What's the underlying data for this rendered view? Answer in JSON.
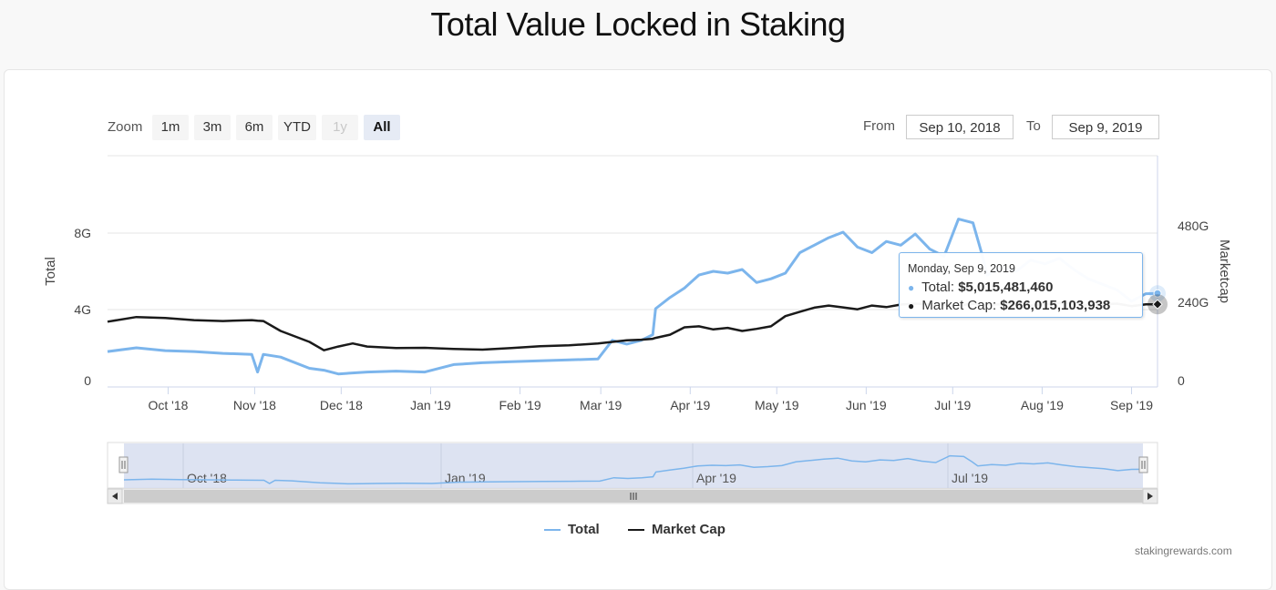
{
  "page": {
    "title": "Total Value Locked in Staking",
    "credits": "stakingrewards.com"
  },
  "range_selector": {
    "zoom_label": "Zoom",
    "buttons": [
      {
        "label": "1m",
        "state": "normal"
      },
      {
        "label": "3m",
        "state": "normal"
      },
      {
        "label": "6m",
        "state": "normal"
      },
      {
        "label": "YTD",
        "state": "normal"
      },
      {
        "label": "1y",
        "state": "disabled"
      },
      {
        "label": "All",
        "state": "active"
      }
    ],
    "from_label": "From",
    "from_value": "Sep 10, 2018",
    "to_label": "To",
    "to_value": "Sep 9, 2019"
  },
  "tooltip": {
    "date": "Monday, Sep 9, 2019",
    "rows": [
      {
        "label": "Total:",
        "value": "$5,015,481,460"
      },
      {
        "label": "Market Cap:",
        "value": "$266,015,103,938"
      }
    ]
  },
  "legend": [
    {
      "label": "Total",
      "color": "#7cb5ec"
    },
    {
      "label": "Market Cap",
      "color": "#1a1a1a"
    }
  ],
  "navigator": {
    "ticks": [
      "Oct '18",
      "Jan '19",
      "Apr '19",
      "Jul '19"
    ]
  },
  "colors": {
    "total": "#7cb5ec",
    "market_cap": "#1a1a1a"
  },
  "chart_data": {
    "type": "line",
    "title": "Total Value Locked in Staking",
    "x": [
      0,
      10,
      20,
      30,
      40,
      50,
      52,
      54,
      60,
      70,
      75,
      80,
      85,
      90,
      100,
      110,
      120,
      130,
      140,
      150,
      160,
      170,
      175,
      180,
      185,
      189,
      190,
      195,
      200,
      205,
      210,
      215,
      220,
      225,
      230,
      235,
      240,
      245,
      250,
      255,
      260,
      265,
      270,
      275,
      280,
      285,
      290,
      295,
      300,
      303,
      305,
      310,
      315,
      320,
      325,
      330,
      335,
      340,
      345,
      350,
      355,
      360,
      364
    ],
    "x_ticks": [
      {
        "label": "Oct '18",
        "day": 21
      },
      {
        "label": "Nov '18",
        "day": 51
      },
      {
        "label": "Dec '18",
        "day": 81
      },
      {
        "label": "Jan '19",
        "day": 112
      },
      {
        "label": "Feb '19",
        "day": 143
      },
      {
        "label": "Mar '19",
        "day": 171
      },
      {
        "label": "Apr '19",
        "day": 202
      },
      {
        "label": "May '19",
        "day": 232
      },
      {
        "label": "Jun '19",
        "day": 263
      },
      {
        "label": "Jul '19",
        "day": 293
      },
      {
        "label": "Aug '19",
        "day": 324
      },
      {
        "label": "Sep '19",
        "day": 355
      }
    ],
    "series": [
      {
        "name": "Total",
        "axis": "left",
        "values": [
          1.9,
          2.1,
          1.95,
          1.9,
          1.8,
          1.75,
          0.8,
          1.75,
          1.6,
          1.0,
          0.9,
          0.7,
          0.75,
          0.8,
          0.85,
          0.8,
          1.2,
          1.3,
          1.35,
          1.4,
          1.45,
          1.5,
          2.5,
          2.3,
          2.5,
          2.8,
          4.2,
          4.8,
          5.3,
          6.0,
          6.2,
          6.1,
          6.3,
          5.6,
          5.8,
          6.1,
          7.2,
          7.6,
          8.0,
          8.3,
          7.5,
          7.2,
          7.8,
          7.6,
          8.2,
          7.4,
          7.0,
          9.0,
          8.8,
          7.2,
          6.0,
          6.4,
          6.2,
          6.8,
          6.6,
          6.9,
          6.3,
          5.8,
          5.5,
          5.2,
          4.6,
          5.0,
          5.015
        ]
      },
      {
        "name": "Market Cap",
        "axis": "right",
        "values": [
          210,
          225,
          222,
          215,
          212,
          215,
          213,
          212,
          180,
          145,
          118,
          130,
          140,
          130,
          125,
          126,
          122,
          120,
          125,
          131,
          134,
          140,
          145,
          150,
          152,
          155,
          158,
          168,
          192,
          195,
          185,
          190,
          180,
          187,
          195,
          228,
          242,
          255,
          262,
          256,
          250,
          262,
          257,
          265,
          268,
          266,
          264,
          262,
          268,
          264,
          265,
          266,
          270,
          262,
          266,
          270,
          268,
          263,
          266,
          268,
          260,
          266,
          266.0
        ]
      }
    ],
    "y_left": {
      "label": "Total",
      "ticks": [
        "0",
        "4G",
        "8G"
      ],
      "range": [
        0,
        12.4
      ]
    },
    "y_right": {
      "label": "Marketcap",
      "ticks": [
        "0",
        "240G",
        "480G"
      ],
      "range": [
        0,
        744
      ]
    }
  }
}
